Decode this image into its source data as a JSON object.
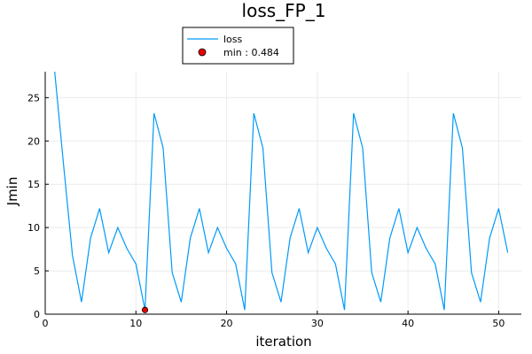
{
  "chart_data": {
    "type": "line",
    "title": "loss_FP_1",
    "xlabel": "iteration",
    "ylabel": "Jmin",
    "xlim": [
      0,
      52.5
    ],
    "ylim": [
      0,
      28
    ],
    "xticks": [
      0,
      10,
      20,
      30,
      40,
      50
    ],
    "yticks": [
      0,
      5,
      10,
      15,
      20,
      25
    ],
    "grid": true,
    "legend_position": "top",
    "series": [
      {
        "name": "loss",
        "color": "#009af9",
        "x": [
          1,
          2,
          3,
          4,
          5,
          6,
          7,
          8,
          9,
          10,
          11,
          12,
          13,
          14,
          15,
          16,
          17,
          18,
          19,
          20,
          21,
          22,
          23,
          24,
          25,
          26,
          27,
          28,
          29,
          30,
          31,
          32,
          33,
          34,
          35,
          36,
          37,
          38,
          39,
          40,
          41,
          42,
          43,
          44,
          45,
          46,
          47,
          48,
          49,
          50,
          51
        ],
        "y": [
          28.5,
          17.5,
          6.8,
          1.4,
          8.8,
          12.2,
          7.1,
          10.0,
          7.6,
          5.8,
          0.484,
          23.2,
          19.2,
          4.8,
          1.4,
          8.8,
          12.2,
          7.1,
          10.0,
          7.6,
          5.8,
          0.484,
          23.2,
          19.2,
          4.8,
          1.4,
          8.8,
          12.2,
          7.1,
          10.0,
          7.6,
          5.8,
          0.484,
          23.2,
          19.2,
          4.8,
          1.4,
          8.8,
          12.2,
          7.1,
          10.0,
          7.6,
          5.8,
          0.484,
          23.2,
          19.2,
          4.8,
          1.4,
          8.8,
          12.2,
          7.1
        ]
      }
    ],
    "min_marker": {
      "name": "min : 0.484",
      "x": 11,
      "y": 0.484,
      "color": "#e60000"
    }
  }
}
